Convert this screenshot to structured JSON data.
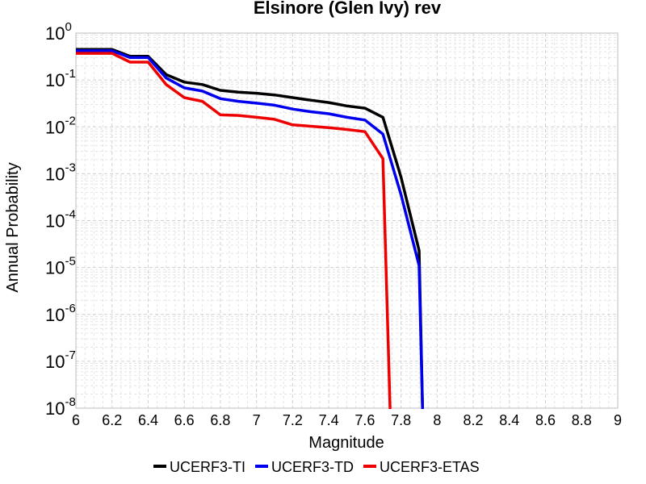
{
  "chart_data": {
    "type": "line",
    "title": "Elsinore (Glen Ivy) rev",
    "xlabel": "Magnitude",
    "ylabel": "Annual Probability",
    "xlim": [
      6,
      9
    ],
    "ylim": [
      1e-08,
      1
    ],
    "yscale": "log",
    "grid": true,
    "legend_position": "bottom",
    "xticks": [
      "6",
      "6.2",
      "6.4",
      "6.6",
      "6.8",
      "7",
      "7.2",
      "7.4",
      "7.6",
      "7.8",
      "8",
      "8.2",
      "8.4",
      "8.6",
      "8.8",
      "9"
    ],
    "yticks": [
      {
        "base": "10",
        "exp": "0"
      },
      {
        "base": "10",
        "exp": "-1"
      },
      {
        "base": "10",
        "exp": "-2"
      },
      {
        "base": "10",
        "exp": "-3"
      },
      {
        "base": "10",
        "exp": "-4"
      },
      {
        "base": "10",
        "exp": "-5"
      },
      {
        "base": "10",
        "exp": "-6"
      },
      {
        "base": "10",
        "exp": "-7"
      },
      {
        "base": "10",
        "exp": "-8"
      }
    ],
    "series": [
      {
        "name": "UCERF3-TI",
        "color": "#000000",
        "x": [
          6.0,
          6.2,
          6.3,
          6.4,
          6.5,
          6.6,
          6.7,
          6.8,
          6.9,
          7.0,
          7.1,
          7.2,
          7.3,
          7.4,
          7.5,
          7.6,
          7.7,
          7.8,
          7.9,
          7.92
        ],
        "y": [
          0.45,
          0.45,
          0.32,
          0.32,
          0.13,
          0.09,
          0.08,
          0.06,
          0.055,
          0.052,
          0.048,
          0.042,
          0.037,
          0.033,
          0.028,
          0.025,
          0.016,
          0.00085,
          2.3e-05,
          1e-09
        ]
      },
      {
        "name": "UCERF3-TD",
        "color": "#0000ee",
        "x": [
          6.0,
          6.2,
          6.3,
          6.4,
          6.5,
          6.6,
          6.7,
          6.8,
          6.9,
          7.0,
          7.1,
          7.2,
          7.3,
          7.4,
          7.5,
          7.6,
          7.7,
          7.8,
          7.9,
          7.92
        ],
        "y": [
          0.42,
          0.42,
          0.3,
          0.3,
          0.11,
          0.068,
          0.058,
          0.04,
          0.035,
          0.032,
          0.029,
          0.024,
          0.021,
          0.019,
          0.016,
          0.014,
          0.007,
          0.00036,
          1.1e-05,
          1e-09
        ]
      },
      {
        "name": "UCERF3-ETAS",
        "color": "#ee0000",
        "x": [
          6.0,
          6.2,
          6.3,
          6.4,
          6.5,
          6.6,
          6.7,
          6.8,
          6.9,
          7.0,
          7.1,
          7.2,
          7.3,
          7.4,
          7.5,
          7.6,
          7.7,
          7.74
        ],
        "y": [
          0.37,
          0.37,
          0.24,
          0.24,
          0.08,
          0.042,
          0.035,
          0.018,
          0.0175,
          0.016,
          0.0145,
          0.011,
          0.0103,
          0.0096,
          0.0088,
          0.0079,
          0.0021,
          1e-09
        ]
      }
    ]
  }
}
